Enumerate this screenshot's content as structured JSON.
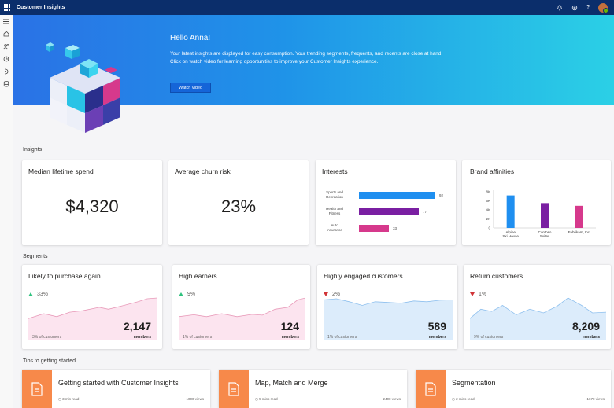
{
  "app": {
    "title": "Customer Insights"
  },
  "topbar": {
    "icons": [
      "bell-icon",
      "gear-icon",
      "help-icon",
      "avatar"
    ]
  },
  "nav": {
    "items": [
      "hamburger-icon",
      "home-icon",
      "people-icon",
      "segments-icon",
      "measures-icon",
      "data-icon"
    ]
  },
  "hero": {
    "greeting": "Hello Anna!",
    "text": "Your latest insights are displayed for easy consumption. Your trending segments, frequents, and recents are close at hand. Click on watch video for learning opportunities to improve your Customer Insights experience.",
    "button": "Watch video"
  },
  "insights": {
    "heading": "Insights",
    "median": {
      "title": "Median lifetime spend",
      "value": "$4,320"
    },
    "churn": {
      "title": "Average churn risk",
      "value": "23%"
    },
    "interests": {
      "title": "Interests",
      "rows": [
        {
          "label1": "Sports and",
          "label2": "Recreation",
          "value": "92",
          "color": "#1f8ff0"
        },
        {
          "label1": "Health and",
          "label2": "Fitness",
          "value": "77",
          "color": "#7a1fa2"
        },
        {
          "label1": "Auto",
          "label2": "insurance",
          "value": "33",
          "color": "#d6398c"
        }
      ]
    },
    "brand": {
      "title": "Brand affinities",
      "yticks": [
        "8K",
        "6K",
        "4K",
        "2K",
        "0"
      ],
      "bars": [
        {
          "label1": "Alpine",
          "label2": "Ski House",
          "color": "#1f8ff0"
        },
        {
          "label1": "Contoso",
          "label2": "Suites",
          "color": "#7a1fa2"
        },
        {
          "label1": "Fabrikam, Inc",
          "label2": "",
          "color": "#d6398c"
        }
      ]
    }
  },
  "chart_data": {
    "type": "bar",
    "title": "Brand affinities",
    "categories": [
      "Alpine Ski House",
      "Contoso Suites",
      "Fabrikam, Inc"
    ],
    "values": [
      7200,
      5500,
      4900
    ],
    "ylim": [
      0,
      8000
    ],
    "yticks": [
      "8K",
      "6K",
      "4K",
      "2K",
      "0"
    ]
  },
  "segments": {
    "heading": "Segments",
    "items": [
      {
        "title": "Likely to purchase again",
        "change": "33%",
        "trend": "up",
        "count": "2,147",
        "members": "members",
        "pct": "3% of customers",
        "fill": "#fce4ef",
        "stroke": "#e89ab9"
      },
      {
        "title": "High earners",
        "change": "9%",
        "trend": "up",
        "count": "124",
        "members": "members",
        "pct": "1% of customers",
        "fill": "#fce4ef",
        "stroke": "#e89ab9"
      },
      {
        "title": "Highly engaged customers",
        "change": "2%",
        "trend": "down",
        "count": "589",
        "members": "members",
        "pct": "1% of customers",
        "fill": "#dcecfb",
        "stroke": "#8fc0ee"
      },
      {
        "title": "Return customers",
        "change": "1%",
        "trend": "down",
        "count": "8,209",
        "members": "members",
        "pct": "9% of customers",
        "fill": "#dcecfb",
        "stroke": "#8fc0ee"
      }
    ]
  },
  "tips": {
    "heading": "Tips to getting started",
    "items": [
      {
        "title": "Getting started with Customer Insights",
        "read": "3 min read",
        "views": "1000 views"
      },
      {
        "title": "Map, Match and Merge",
        "read": "5 mins read",
        "views": "2400 views"
      },
      {
        "title": "Segmentation",
        "read": "2 mins read",
        "views": "1670 views"
      }
    ]
  }
}
